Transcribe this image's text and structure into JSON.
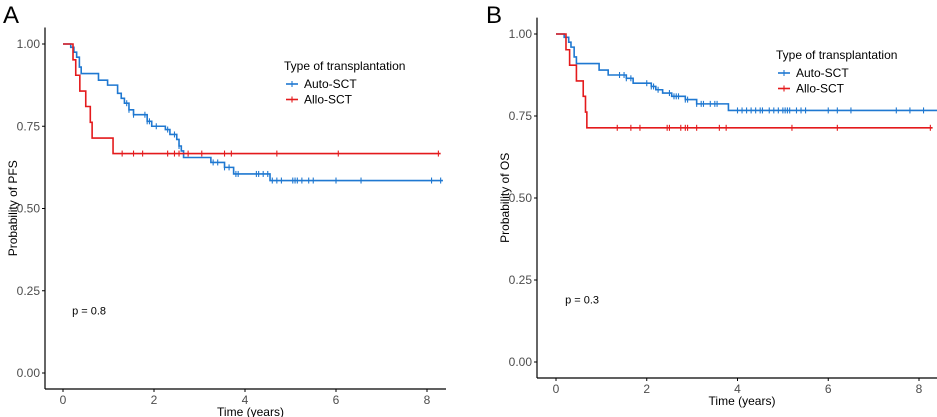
{
  "chart_data": [
    {
      "type": "line",
      "subtype": "kaplan-meier",
      "panel_label": "A",
      "title": "",
      "xlabel": "Time (years)",
      "ylabel": "Probability of PFS",
      "xlim": [
        -0.35,
        8.4
      ],
      "ylim": [
        -0.05,
        1.05
      ],
      "xticks": [
        0,
        2,
        4,
        6,
        8
      ],
      "xtick_labels": [
        "0",
        "2",
        "4",
        "6",
        "8"
      ],
      "yticks": [
        0,
        0.25,
        0.5,
        0.75,
        1.0
      ],
      "ytick_labels": [
        "0.00",
        "0.25",
        "0.50",
        "0.75",
        "1.00"
      ],
      "grid": false,
      "legend": {
        "title": "Type of transplantation",
        "placement": "top-right"
      },
      "annotation": {
        "text": "p = 0.8",
        "x": 0.2,
        "y": 0.19
      },
      "series": [
        {
          "name": "Auto-SCT",
          "color": "#1f78d1",
          "steps": [
            [
              0,
              1.0
            ],
            [
              0.17,
              0.99
            ],
            [
              0.24,
              0.975
            ],
            [
              0.3,
              0.96
            ],
            [
              0.36,
              0.93
            ],
            [
              0.4,
              0.91
            ],
            [
              0.78,
              0.89
            ],
            [
              0.98,
              0.875
            ],
            [
              1.2,
              0.85
            ],
            [
              1.28,
              0.835
            ],
            [
              1.35,
              0.82
            ],
            [
              1.45,
              0.8
            ],
            [
              1.55,
              0.785
            ],
            [
              1.85,
              0.765
            ],
            [
              1.95,
              0.75
            ],
            [
              2.25,
              0.74
            ],
            [
              2.35,
              0.725
            ],
            [
              2.5,
              0.71
            ],
            [
              2.55,
              0.69
            ],
            [
              2.6,
              0.675
            ],
            [
              2.65,
              0.655
            ],
            [
              3.25,
              0.64
            ],
            [
              3.55,
              0.625
            ],
            [
              3.75,
              0.605
            ],
            [
              4.55,
              0.585
            ]
          ],
          "end": 8.35,
          "censored": [
            1.4,
            1.45,
            1.55,
            1.8,
            1.85,
            1.9,
            2.05,
            2.3,
            2.45,
            2.55,
            3.3,
            3.4,
            3.55,
            3.65,
            3.8,
            3.85,
            4.25,
            4.3,
            4.4,
            4.5,
            4.6,
            4.7,
            4.8,
            5.05,
            5.1,
            5.15,
            5.25,
            5.4,
            5.5,
            6.0,
            6.55,
            8.1,
            8.3
          ]
        },
        {
          "name": "Allo-SCT",
          "color": "#e41a1c",
          "steps": [
            [
              0,
              1.0
            ],
            [
              0.22,
              0.952
            ],
            [
              0.28,
              0.905
            ],
            [
              0.37,
              0.857
            ],
            [
              0.5,
              0.81
            ],
            [
              0.6,
              0.762
            ],
            [
              0.64,
              0.714
            ],
            [
              1.1,
              0.667
            ]
          ],
          "end": 8.3,
          "censored": [
            1.3,
            1.55,
            1.75,
            2.3,
            2.45,
            2.55,
            2.75,
            3.05,
            3.55,
            3.7,
            4.7,
            6.05,
            8.25
          ]
        }
      ]
    },
    {
      "type": "line",
      "subtype": "kaplan-meier",
      "panel_label": "B",
      "title": "",
      "xlabel": "Time (years)",
      "ylabel": "Probability of OS",
      "xlim": [
        -0.35,
        8.4
      ],
      "ylim": [
        -0.05,
        1.05
      ],
      "xticks": [
        0,
        2,
        4,
        6,
        8
      ],
      "xtick_labels": [
        "0",
        "2",
        "4",
        "6",
        "8"
      ],
      "yticks": [
        0,
        0.25,
        0.5,
        0.75,
        1.0
      ],
      "ytick_labels": [
        "0.00",
        "0.25",
        "0.50",
        "0.75",
        "1.00"
      ],
      "grid": false,
      "legend": {
        "title": "Type of transplantation",
        "placement": "top-right"
      },
      "annotation": {
        "text": "p = 0.3",
        "x": 0.2,
        "y": 0.19
      },
      "series": [
        {
          "name": "Auto-SCT",
          "color": "#1f78d1",
          "steps": [
            [
              0,
              1.0
            ],
            [
              0.18,
              0.99
            ],
            [
              0.28,
              0.975
            ],
            [
              0.33,
              0.96
            ],
            [
              0.4,
              0.93
            ],
            [
              0.45,
              0.91
            ],
            [
              0.95,
              0.89
            ],
            [
              1.15,
              0.875
            ],
            [
              1.55,
              0.865
            ],
            [
              1.7,
              0.85
            ],
            [
              2.1,
              0.84
            ],
            [
              2.2,
              0.83
            ],
            [
              2.35,
              0.82
            ],
            [
              2.55,
              0.81
            ],
            [
              2.85,
              0.8
            ],
            [
              3.1,
              0.787
            ],
            [
              3.8,
              0.767
            ]
          ],
          "end": 8.4,
          "censored": [
            1.4,
            1.5,
            1.55,
            1.65,
            2.0,
            2.1,
            2.15,
            2.25,
            2.5,
            2.6,
            2.65,
            2.7,
            2.85,
            2.9,
            3.1,
            3.2,
            3.25,
            3.4,
            3.5,
            3.55,
            4.0,
            4.1,
            4.2,
            4.3,
            4.4,
            4.5,
            4.55,
            4.7,
            4.8,
            4.9,
            5.0,
            5.05,
            5.1,
            5.15,
            5.3,
            5.4,
            5.5,
            6.0,
            6.2,
            6.5,
            7.5,
            7.8,
            8.1
          ]
        },
        {
          "name": "Allo-SCT",
          "color": "#e41a1c",
          "steps": [
            [
              0,
              1.0
            ],
            [
              0.22,
              0.952
            ],
            [
              0.3,
              0.905
            ],
            [
              0.45,
              0.857
            ],
            [
              0.6,
              0.81
            ],
            [
              0.65,
              0.762
            ],
            [
              0.68,
              0.714
            ]
          ],
          "end": 8.3,
          "censored": [
            1.35,
            1.65,
            1.85,
            2.45,
            2.5,
            2.75,
            2.85,
            2.9,
            3.1,
            3.6,
            3.75,
            5.2,
            6.2,
            8.25
          ]
        }
      ]
    }
  ]
}
